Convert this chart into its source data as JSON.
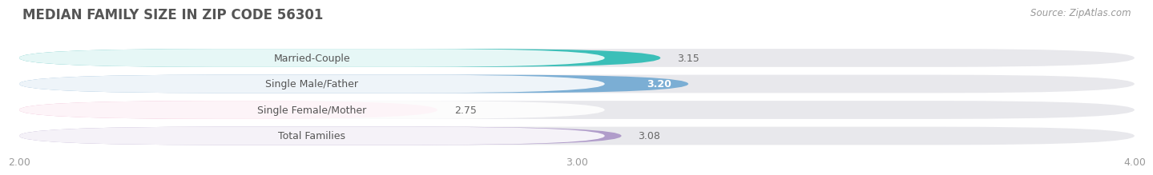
{
  "title": "MEDIAN FAMILY SIZE IN ZIP CODE 56301",
  "source": "Source: ZipAtlas.com",
  "categories": [
    "Married-Couple",
    "Single Male/Father",
    "Single Female/Mother",
    "Total Families"
  ],
  "values": [
    3.15,
    3.2,
    2.75,
    3.08
  ],
  "bar_colors": [
    "#3bbfb8",
    "#7baed4",
    "#f4a8c8",
    "#b09cca"
  ],
  "background_color": "#ffffff",
  "bar_bg_color": "#e8e8ec",
  "value_inside": [
    false,
    true,
    false,
    false
  ],
  "xlim": [
    2.0,
    4.0
  ],
  "xticks": [
    2.0,
    3.0,
    4.0
  ],
  "xtick_labels": [
    "2.00",
    "3.00",
    "4.00"
  ],
  "title_fontsize": 12,
  "label_fontsize": 9,
  "value_fontsize": 9,
  "source_fontsize": 8.5
}
